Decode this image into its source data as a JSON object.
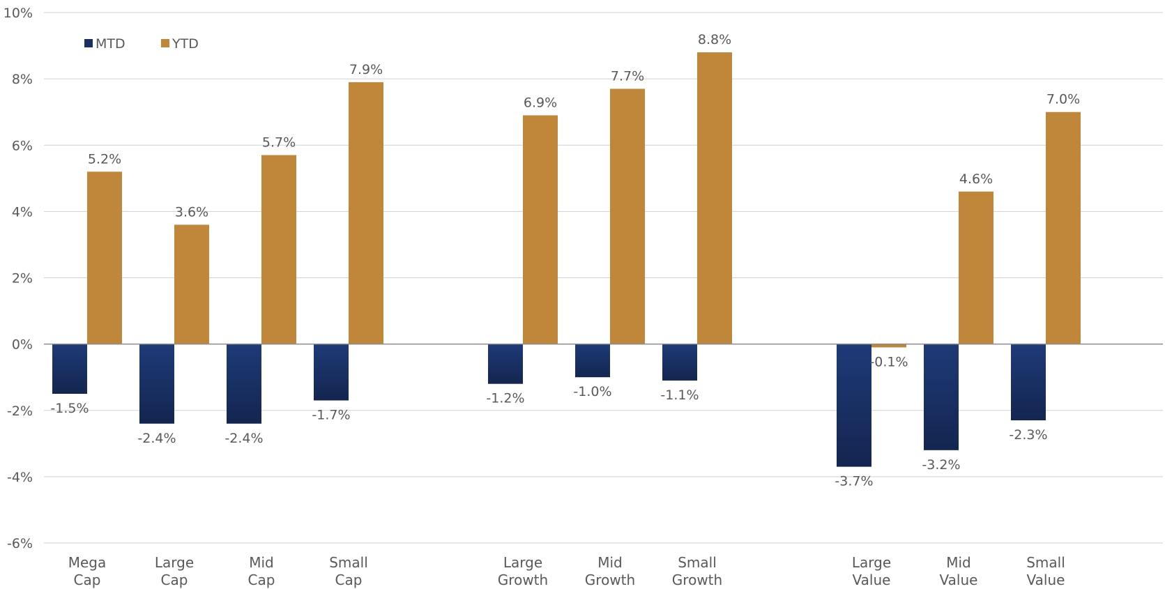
{
  "chart_data": {
    "type": "bar",
    "categories": [
      [
        "Mega",
        "Cap"
      ],
      [
        "Large",
        "Cap"
      ],
      [
        "Mid",
        "Cap"
      ],
      [
        "Small",
        "Cap"
      ],
      [
        "Large",
        "Growth"
      ],
      [
        "Mid",
        "Growth"
      ],
      [
        "Small",
        "Growth"
      ],
      [
        "Large",
        "Value"
      ],
      [
        "Mid",
        "Value"
      ],
      [
        "Small",
        "Value"
      ]
    ],
    "series": [
      {
        "name": "MTD",
        "color": "#1b2f63",
        "values": [
          -1.5,
          -2.4,
          -2.4,
          -1.7,
          -1.2,
          -1.0,
          -1.1,
          -3.7,
          -3.2,
          -2.3
        ],
        "labels": [
          "-1.5%",
          "-2.4%",
          "-2.4%",
          "-1.7%",
          "-1.2%",
          "-1.0%",
          "-1.1%",
          "-3.7%",
          "-3.2%",
          "-2.3%"
        ]
      },
      {
        "name": "YTD",
        "color": "#c0873a",
        "values": [
          5.2,
          3.6,
          5.7,
          7.9,
          6.9,
          7.7,
          8.8,
          -0.1,
          4.6,
          7.0
        ],
        "labels": [
          "5.2%",
          "3.6%",
          "5.7%",
          "7.9%",
          "6.9%",
          "7.7%",
          "8.8%",
          "-0.1%",
          "4.6%",
          "7.0%"
        ]
      }
    ],
    "groups": [
      [
        0,
        1,
        2,
        3
      ],
      [
        4,
        5,
        6
      ],
      [
        7,
        8,
        9
      ]
    ],
    "ylim": [
      -6,
      10
    ],
    "yticks": [
      -6,
      -4,
      -2,
      0,
      2,
      4,
      6,
      8,
      10
    ],
    "ytick_labels": [
      "-6%",
      "-4%",
      "-2%",
      "0%",
      "2%",
      "4%",
      "6%",
      "8%",
      "10%"
    ],
    "grid": true,
    "legend": "top-left",
    "title": "",
    "xlabel": "",
    "ylabel": ""
  }
}
